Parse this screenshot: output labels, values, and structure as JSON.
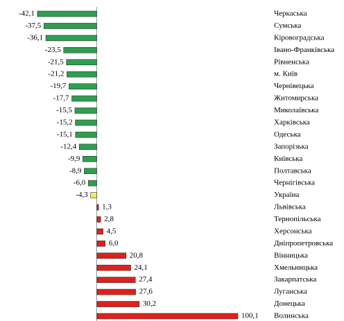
{
  "chart_data": {
    "type": "bar",
    "orientation": "horizontal",
    "categories": [
      "Черкаська",
      "Сумська",
      "Кіровоградська",
      "Івано-Франківська",
      "Рівненська",
      "м. Київ",
      "Чернівецька",
      "Житомирська",
      "Миколаївська",
      "Харківська",
      "Одеська",
      "Запорізька",
      "Київська",
      "Полтавська",
      "Чернігівська",
      "Україна",
      "Львівська",
      "Тернопільська",
      "Херсонська",
      "Дніпропетровська",
      "Вінницька",
      "Хмельницька",
      "Закарпатська",
      "Луганська",
      "Донецька",
      "Волинська"
    ],
    "values": [
      -42.1,
      -37.5,
      -36.1,
      -23.5,
      -21.5,
      -21.2,
      -19.7,
      -17.7,
      -15.5,
      -15.2,
      -15.1,
      -12.4,
      -9.9,
      -8.9,
      -6.0,
      -4.3,
      1.3,
      2.8,
      4.5,
      6.0,
      20.8,
      24.1,
      27.4,
      27.6,
      30.2,
      100.1
    ],
    "value_labels": [
      "-42,1",
      "-37,5",
      "-36,1",
      "-23,5",
      "-21,5",
      "-21,2",
      "-19,7",
      "-17,7",
      "-15,5",
      "-15,2",
      "-15,1",
      "-12,4",
      "-9,9",
      "-8,9",
      "-6,0",
      "-4,3",
      "1,3",
      "2,8",
      "4,5",
      "6,0",
      "20,8",
      "24,1",
      "27,4",
      "27,6",
      "30,2",
      "100,1"
    ],
    "colors": [
      "#2e9e4f",
      "#2e9e4f",
      "#2e9e4f",
      "#2e9e4f",
      "#2e9e4f",
      "#2e9e4f",
      "#2e9e4f",
      "#2e9e4f",
      "#2e9e4f",
      "#2e9e4f",
      "#2e9e4f",
      "#2e9e4f",
      "#2e9e4f",
      "#2e9e4f",
      "#2e9e4f",
      "#f2f05a",
      "#e0201c",
      "#e0201c",
      "#e0201c",
      "#e0201c",
      "#e0201c",
      "#e0201c",
      "#e0201c",
      "#e0201c",
      "#e0201c",
      "#e0201c"
    ]
  }
}
